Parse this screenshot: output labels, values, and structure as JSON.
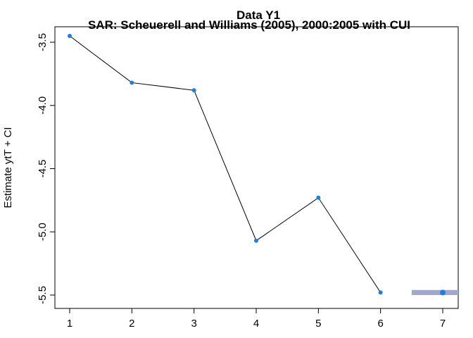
{
  "chart_data": {
    "type": "line",
    "title": "Data Y1",
    "subtitle": "SAR: Scheuerell and Williams (2005), 2000:2005 with CUI",
    "xlabel": "",
    "ylabel": "Estimate ytT + CI",
    "xlim": [
      0.98,
      7.25
    ],
    "ylim": [
      -5.53,
      -3.32
    ],
    "x_ticks": [
      1,
      2,
      3,
      4,
      5,
      6,
      7
    ],
    "x_tick_labels": [
      "1",
      "2",
      "3",
      "4",
      "5",
      "6",
      "7"
    ],
    "y_ticks": [
      -3.5,
      -4.0,
      -4.5,
      -5.0,
      -5.5
    ],
    "y_tick_labels": [
      "-3.5",
      "-4.0",
      "-4.5",
      "-5.0",
      "-5.5"
    ],
    "grid": false,
    "series": [
      {
        "x": [
          1,
          2,
          3,
          4,
          5,
          6
        ],
        "y": [
          -3.45,
          -3.82,
          -3.88,
          -5.07,
          -4.73,
          -5.48
        ],
        "color": "#1f7fe0",
        "line_color": "#000000"
      }
    ],
    "forecast": {
      "x": 7,
      "y": -5.48,
      "ci_lower": -5.5,
      "ci_upper": -5.46,
      "ci_x_range": [
        6.5,
        7.25
      ],
      "ci_color": "#a3a7c9",
      "point_color": "#1f7fe0"
    }
  }
}
